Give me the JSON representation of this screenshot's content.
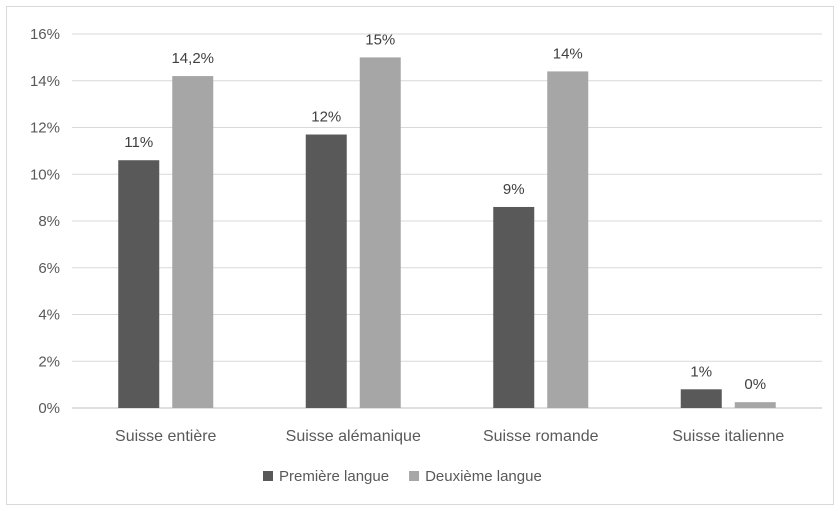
{
  "chart_data": {
    "type": "bar",
    "title": "",
    "xlabel": "",
    "ylabel": "",
    "ylim": [
      0,
      16
    ],
    "yticks": [
      "0%",
      "2%",
      "4%",
      "6%",
      "8%",
      "10%",
      "12%",
      "14%",
      "16%"
    ],
    "grid": true,
    "legend_position": "bottom",
    "categories": [
      "Suisse entière",
      "Suisse alémanique",
      "Suisse romande",
      "Suisse italienne"
    ],
    "series": [
      {
        "name": "Première langue",
        "color": "#595959",
        "values": [
          10.6,
          11.7,
          8.6,
          0.8
        ],
        "labels": [
          "11%",
          "12%",
          "9%",
          "1%"
        ]
      },
      {
        "name": "Deuxième langue",
        "color": "#a6a6a6",
        "values": [
          14.2,
          15.0,
          14.4,
          0.25
        ],
        "labels": [
          "14,2%",
          "15%",
          "14%",
          "0%"
        ]
      }
    ]
  }
}
